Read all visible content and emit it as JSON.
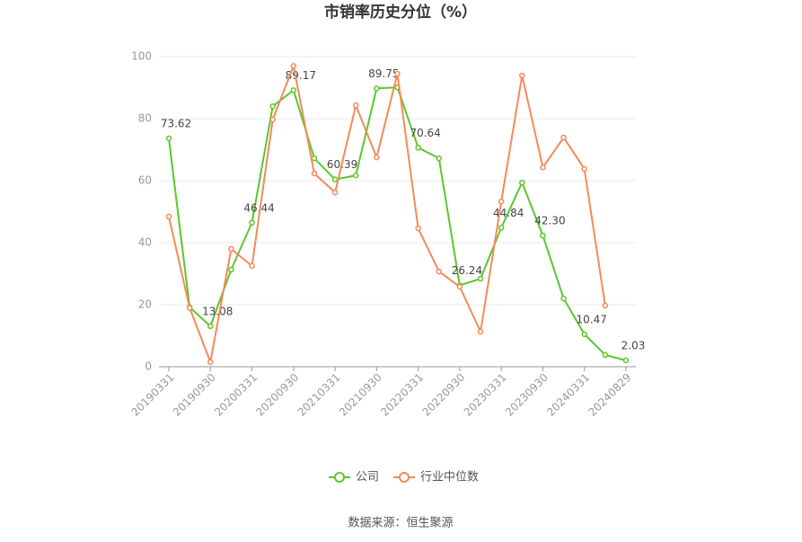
{
  "chart_data": {
    "type": "line",
    "title": "市销率历史分位（%）",
    "source": "数据来源：恒生聚源",
    "categories": [
      "20190331",
      null,
      "20190930",
      null,
      "20200331",
      null,
      "20200930",
      null,
      "20210331",
      null,
      "20210930",
      null,
      "20220331",
      null,
      "20220930",
      null,
      "20230331",
      null,
      "20230930",
      null,
      "20240331",
      null,
      "20240829"
    ],
    "series": [
      {
        "name": "公司",
        "color": "#5cc72b",
        "values": [
          73.62,
          19.2,
          13.08,
          31.3,
          46.44,
          84,
          89.17,
          67.2,
          60.39,
          61.7,
          89.75,
          90.1,
          70.64,
          67.2,
          26.24,
          28.4,
          44.84,
          59.4,
          42.3,
          22,
          10.47,
          3.8,
          2.03
        ],
        "value_labels": [
          "73.62",
          null,
          "13.08",
          null,
          "46.44",
          null,
          "89.17",
          null,
          "60.39",
          null,
          "89.75",
          null,
          "70.64",
          null,
          "26.24",
          null,
          "44.84",
          null,
          "42.30",
          null,
          "10.47",
          null,
          "2.03"
        ]
      },
      {
        "name": "行业中位数",
        "color": "#f5895a",
        "values": [
          48.4,
          19,
          1.5,
          38,
          32.5,
          79.7,
          97,
          62.3,
          56.2,
          84.3,
          67.5,
          94.5,
          44.6,
          30.7,
          25.8,
          11.3,
          53.3,
          93.9,
          64.3,
          73.9,
          63.8,
          19.7,
          null
        ]
      }
    ],
    "ylim": [
      0,
      100
    ],
    "yticks": [
      0,
      20,
      40,
      60,
      80,
      100
    ],
    "grid": true
  }
}
